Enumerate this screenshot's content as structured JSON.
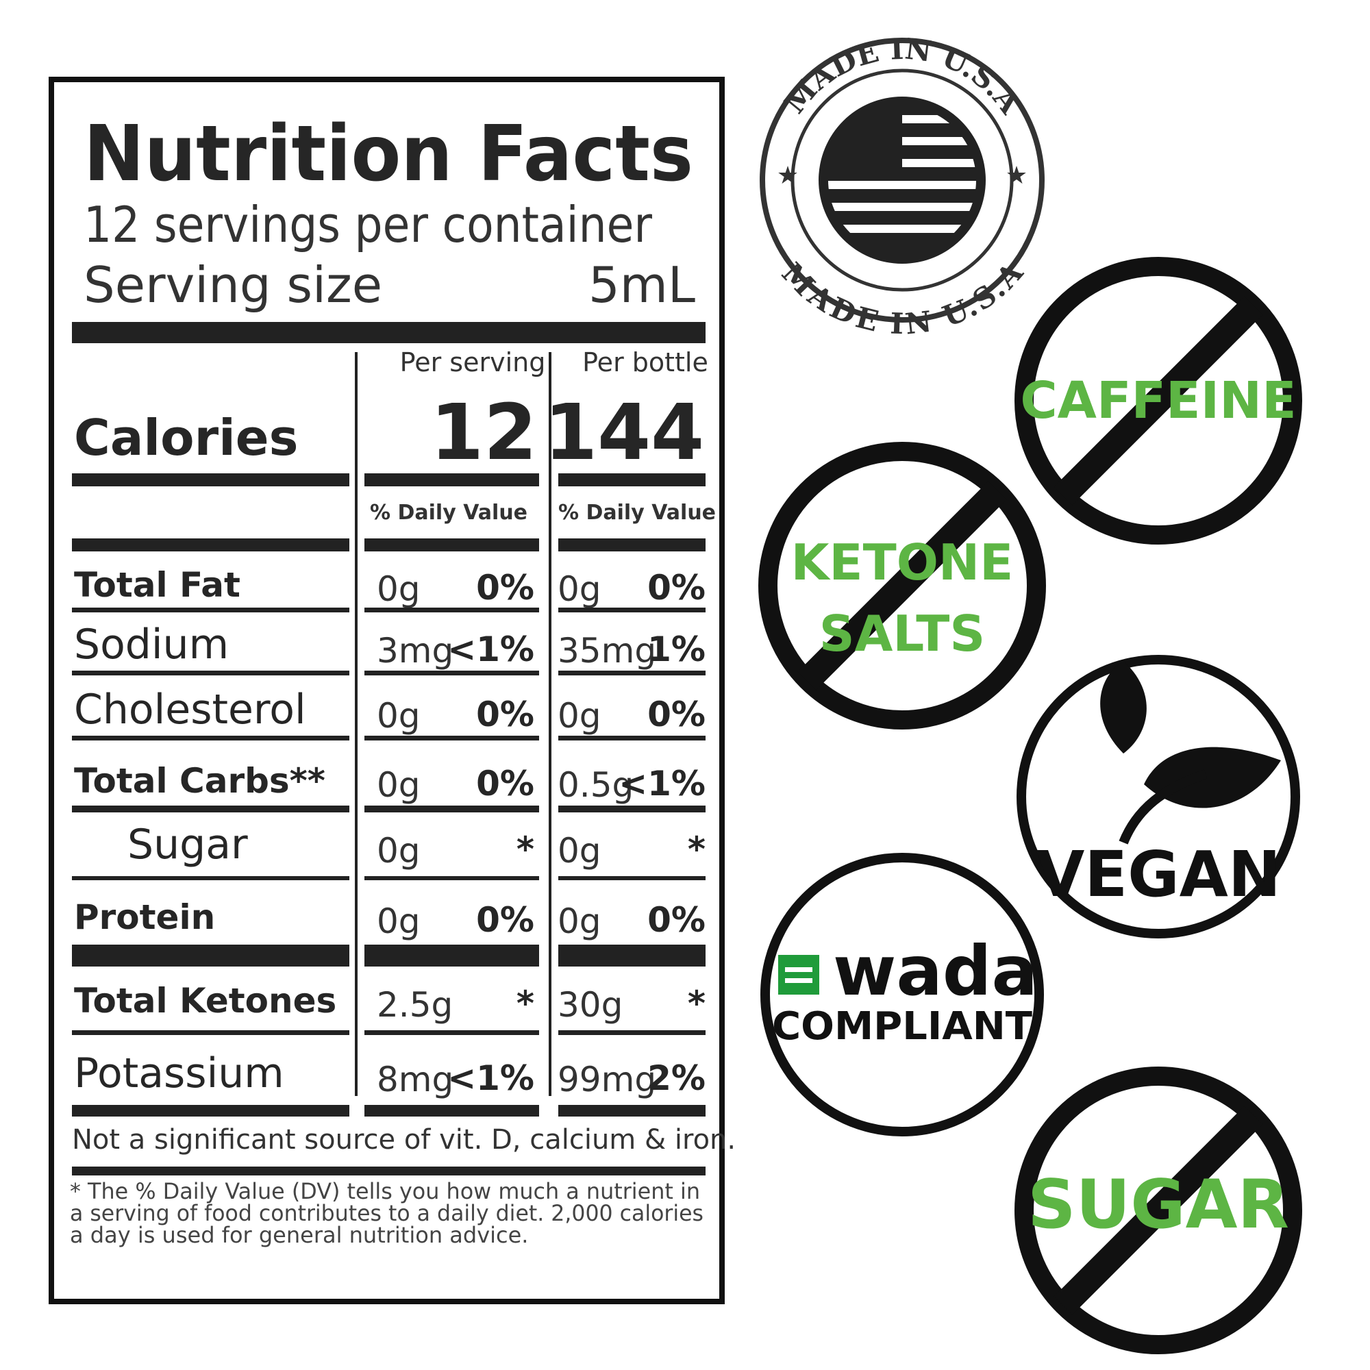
{
  "label": {
    "title": "Nutrition Facts",
    "servings": "12 servings per container",
    "serving_size_label": "Serving size",
    "serving_size": "5mL",
    "columns": [
      "Per serving",
      "Per bottle"
    ],
    "calories_label": "Calories",
    "calories": [
      12,
      144
    ],
    "dv_headers": [
      "% Daily Value",
      "% Daily Value"
    ],
    "rows": [
      {
        "name": "Total Fat",
        "serving": [
          "0g",
          "0%"
        ],
        "bottle": [
          "0g",
          "0%"
        ]
      },
      {
        "name": "Sodium",
        "serving": [
          "3mg",
          "<1%"
        ],
        "bottle": [
          "35mg",
          "1%"
        ]
      },
      {
        "name": "Cholesterol",
        "serving": [
          "0g",
          "0%"
        ],
        "bottle": [
          "0g",
          "0%"
        ]
      },
      {
        "name": "Total Carbs**",
        "serving": [
          "0g",
          "0%"
        ],
        "bottle": [
          "0.5g",
          "<1%"
        ]
      },
      {
        "name": "Sugar",
        "serving": [
          "0g",
          "*"
        ],
        "bottle": [
          "0g",
          "*"
        ]
      },
      {
        "name": "Protein",
        "serving": [
          "0g",
          "0%"
        ],
        "bottle": [
          "0g",
          "0%"
        ]
      },
      {
        "name": "Total Ketones",
        "serving": [
          "2.5g",
          "*"
        ],
        "bottle": [
          "30g",
          "*"
        ]
      },
      {
        "name": "Potassium",
        "serving": [
          "8mg",
          "<1%"
        ],
        "bottle": [
          "99mg",
          "2%"
        ]
      }
    ],
    "note": "Not a significant source of vit. D, calcium & iron.",
    "footnote": [
      "* The % Daily Value (DV) tells you how much a nutrient in",
      "a serving of food contributes to a daily diet. 2,000 calories",
      "a day is used for general nutrition advice."
    ]
  },
  "badges": {
    "made_in_usa": {
      "top": "MADE IN U.S.A",
      "bottom": "MADE IN U.S.A"
    },
    "caffeine": "CAFFEINE",
    "ketone_salts": [
      "KETONE",
      "SALTS"
    ],
    "vegan": "VEGAN",
    "wada": {
      "logo": "wada",
      "text": "COMPLIANT"
    },
    "sugar": "SUGAR"
  }
}
